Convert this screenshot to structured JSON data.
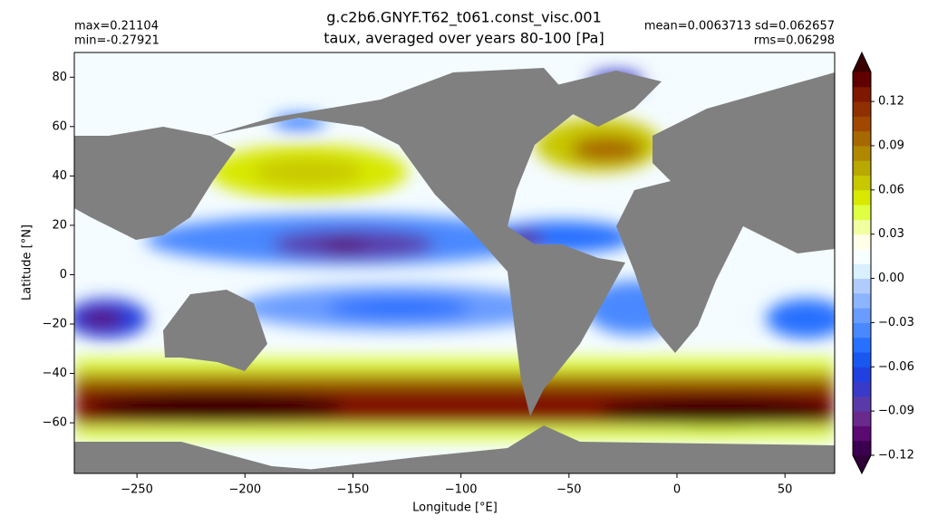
{
  "chart_data": {
    "type": "map",
    "title": "g.c2b6.GNYF.T62_t061.const_visc.001",
    "subtitle": "taux, averaged over years 80-100 [Pa]",
    "stats_left": [
      "max=0.21104",
      "min=-0.27921"
    ],
    "stats_right": [
      "mean=0.0063713  sd=0.062657",
      "rms=0.06298"
    ],
    "x_label": "Longitude [°E]",
    "y_label": "Latitude [°N]",
    "xlim": [
      -279,
      73
    ],
    "ylim": [
      -80.5,
      90
    ],
    "xticks": [
      {
        "value": -250,
        "label": "−250"
      },
      {
        "value": -200,
        "label": "−200"
      },
      {
        "value": -150,
        "label": "−150"
      },
      {
        "value": -100,
        "label": "−100"
      },
      {
        "value": -50,
        "label": "−50"
      },
      0,
      50
    ],
    "yticks": [
      {
        "value": -60,
        "label": "−60"
      },
      {
        "value": -40,
        "label": "−40"
      },
      {
        "value": -20,
        "label": "−20"
      },
      0,
      20,
      40,
      60,
      80
    ],
    "colorbar": {
      "lim": [
        -0.12,
        0.14
      ],
      "ticks": [
        {
          "value": -0.12,
          "label": "−0.12"
        },
        {
          "value": -0.09,
          "label": "−0.09"
        },
        {
          "value": -0.06,
          "label": "−0.06"
        },
        {
          "value": -0.03,
          "label": "−0.03"
        },
        {
          "value": 0,
          "label": "0.00"
        },
        0.03,
        0.06,
        0.09,
        0.12
      ],
      "colors": [
        "#3c0050",
        "#5a0a70",
        "#6a2a8c",
        "#5a3aa8",
        "#3a3ac8",
        "#2040e0",
        "#1858f0",
        "#2870ff",
        "#4a88ff",
        "#6a9cff",
        "#8cb4ff",
        "#b0ccff",
        "#d8f0ff",
        "#f8ffff",
        "#ffffe8",
        "#f0ffa0",
        "#e0ff40",
        "#d8e800",
        "#c8c800",
        "#b8a800",
        "#b08800",
        "#a86800",
        "#a04800",
        "#903000",
        "#801800",
        "#600000"
      ],
      "under_color": "#300038",
      "over_color": "#3a0000"
    }
  }
}
